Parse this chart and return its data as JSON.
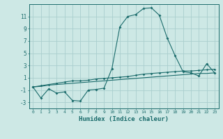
{
  "xlabel": "Humidex (Indice chaleur)",
  "ylabel": "",
  "bg_color": "#cde8e5",
  "grid_color": "#aacece",
  "line_color": "#1a6b6b",
  "xlim": [
    -0.5,
    23.5
  ],
  "ylim": [
    -4,
    13
  ],
  "yticks": [
    -3,
    -1,
    1,
    3,
    5,
    7,
    9,
    11
  ],
  "xticks": [
    0,
    1,
    2,
    3,
    4,
    5,
    6,
    7,
    8,
    9,
    10,
    11,
    12,
    13,
    14,
    15,
    16,
    17,
    18,
    19,
    20,
    21,
    22,
    23
  ],
  "line1_x": [
    0,
    1,
    2,
    3,
    4,
    5,
    6,
    7,
    8,
    9,
    10,
    11,
    12,
    13,
    14,
    15,
    16,
    17,
    18,
    19,
    20,
    21,
    22,
    23
  ],
  "line1_y": [
    -0.5,
    -2.3,
    -0.8,
    -1.5,
    -1.3,
    -2.7,
    -2.8,
    -1.0,
    -0.9,
    -0.7,
    2.5,
    9.3,
    11.0,
    11.3,
    12.3,
    12.4,
    11.2,
    7.5,
    4.6,
    2.0,
    1.8,
    1.3,
    3.3,
    1.8
  ],
  "line2_x": [
    0,
    1,
    2,
    3,
    4,
    5,
    6,
    7,
    8,
    9,
    10,
    11,
    12,
    13,
    14,
    15,
    16,
    17,
    18,
    19,
    20,
    21,
    22,
    23
  ],
  "line2_y": [
    -0.5,
    -0.3,
    -0.1,
    0.1,
    0.3,
    0.5,
    0.5,
    0.6,
    0.8,
    0.9,
    1.0,
    1.1,
    1.2,
    1.4,
    1.6,
    1.7,
    1.8,
    1.9,
    2.0,
    2.1,
    2.1,
    2.2,
    2.3,
    2.4
  ],
  "line3_x": [
    0,
    1,
    2,
    3,
    4,
    5,
    6,
    7,
    8,
    9,
    10,
    11,
    12,
    13,
    14,
    15,
    16,
    17,
    18,
    19,
    20,
    21,
    22,
    23
  ],
  "line3_y": [
    -0.5,
    -0.4,
    -0.2,
    -0.1,
    0.0,
    0.1,
    0.2,
    0.3,
    0.4,
    0.5,
    0.6,
    0.7,
    0.8,
    0.9,
    1.0,
    1.1,
    1.2,
    1.3,
    1.4,
    1.5,
    1.6,
    1.7,
    1.7,
    1.8
  ]
}
